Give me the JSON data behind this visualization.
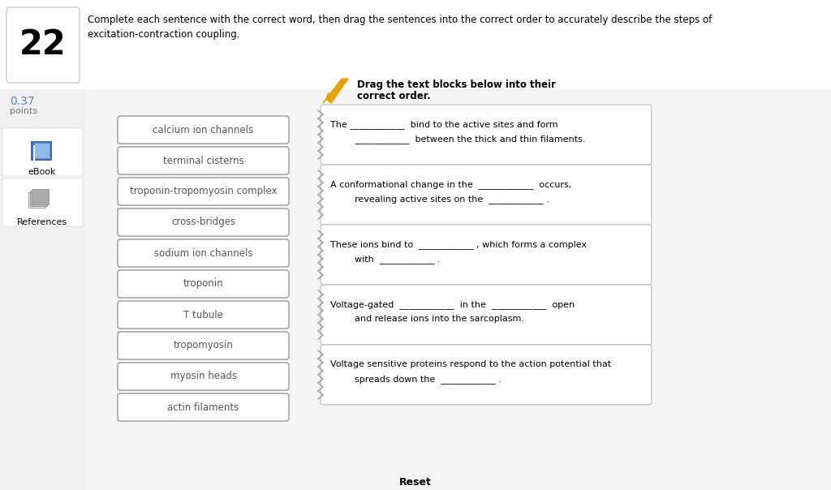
{
  "bg_color": "#f5f5f5",
  "number": "22",
  "instruction_text": "Complete each sentence with the correct word, then drag the sentences into the correct order to accurately describe the steps of\nexcitation-contraction coupling.",
  "points_value": "0.37",
  "points_label": "points",
  "drag_instruction_line1": "Drag the text blocks below into their",
  "drag_instruction_line2": "correct order.",
  "word_bank": [
    "calcium ion channels",
    "terminal cisterns",
    "troponin-tropomyosin complex",
    "cross-bridges",
    "sodium ion channels",
    "troponin",
    "T tubule",
    "tropomyosin",
    "myosin heads",
    "actin filaments"
  ],
  "sentence_line1": [
    "The ____________  bind to the active sites and form",
    "A conformational change in the  ____________  occurs,",
    "These ions bind to  ____________ , which forms a complex",
    "Voltage-gated  ____________  in the  ____________  open",
    "Voltage sensitive proteins respond to the action potential that"
  ],
  "sentence_line2": [
    "____________  between the thick and thin filaments.",
    "revealing active sites on the  ____________ .",
    "with  ____________ .",
    "and release ions into the sarcoplasm.",
    "spreads down the  ____________ ."
  ],
  "reset_text": "Reset",
  "ebook_text": "eBook",
  "references_text": "References",
  "arrow_color": "#e8a000",
  "btn_text_color": "#555555",
  "box_border_color": "#bbbbbb",
  "zigzag_color": "#aaaaaa",
  "title_bg": "#ffffff",
  "sent_bg": "#ffffff",
  "btn_bg": "#ffffff"
}
